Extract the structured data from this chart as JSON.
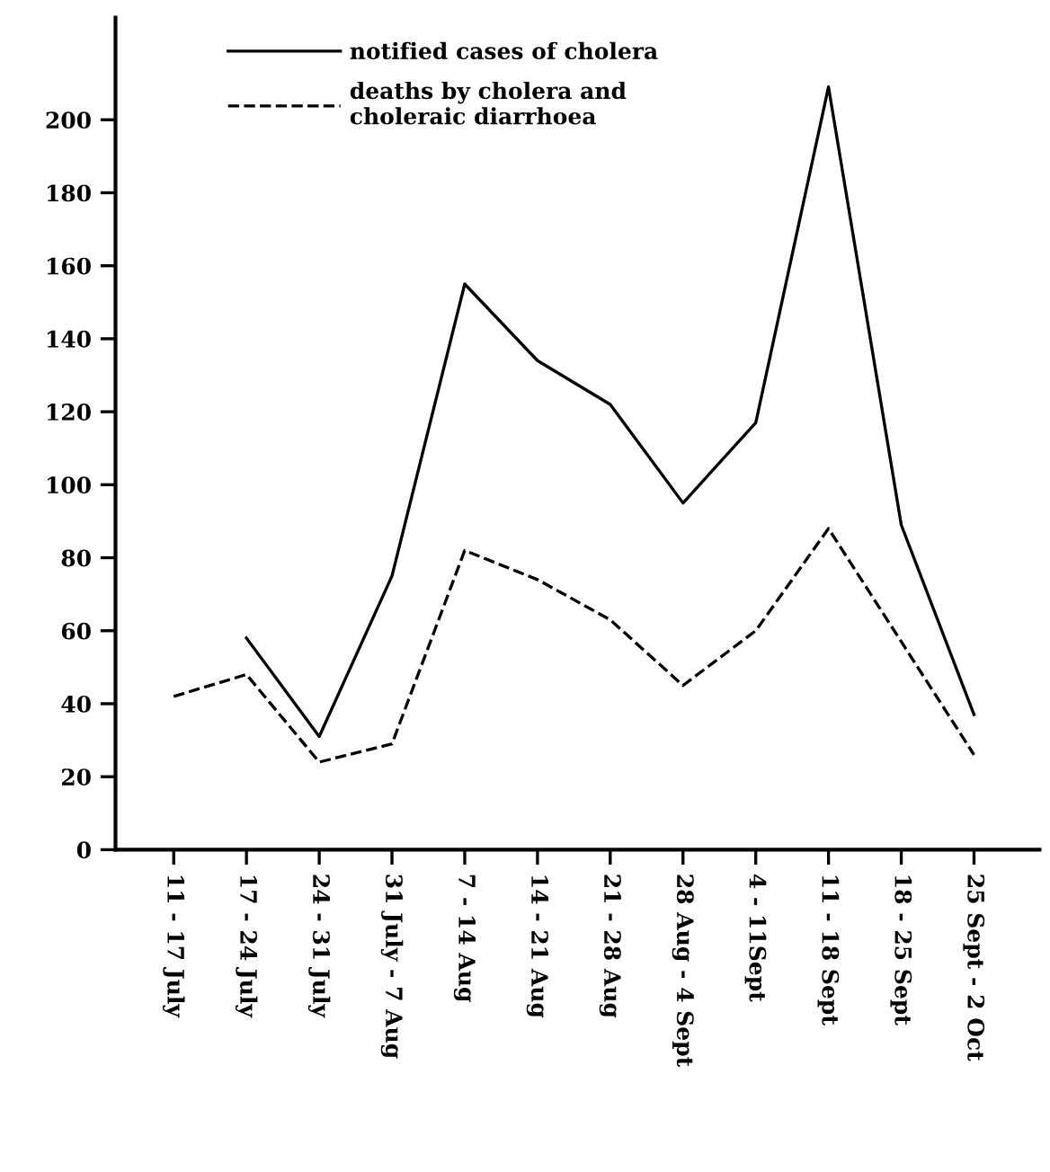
{
  "chart_data": {
    "type": "line",
    "categories": [
      "11 - 17 July",
      "17 - 24 July",
      "24 - 31 July",
      "31 July - 7 Aug",
      "7 - 14 Aug",
      "14 - 21 Aug",
      "21 - 28 Aug",
      "28 Aug - 4 Sept",
      "4 - 11Sept",
      "11 - 18 Sept",
      "18 - 25 Sept",
      "25 Sept - 2 Oct"
    ],
    "series": [
      {
        "name": "notified cases of cholera",
        "color": "#000000",
        "line_style": "solid",
        "values": [
          null,
          58,
          31,
          75,
          155,
          134,
          122,
          95,
          117,
          209,
          89,
          37
        ]
      },
      {
        "name": "deaths by cholera and\ncholeraic diarrhoea",
        "color": "#000000",
        "line_style": "dashed",
        "values": [
          42,
          48,
          24,
          29,
          82,
          74,
          63,
          45,
          60,
          88,
          57,
          26
        ]
      }
    ],
    "ylim": [
      0,
      228
    ],
    "yticks": [
      0,
      20,
      40,
      60,
      80,
      100,
      120,
      140,
      160,
      180,
      200
    ],
    "grid": false,
    "legend": "top",
    "marker": "none"
  }
}
